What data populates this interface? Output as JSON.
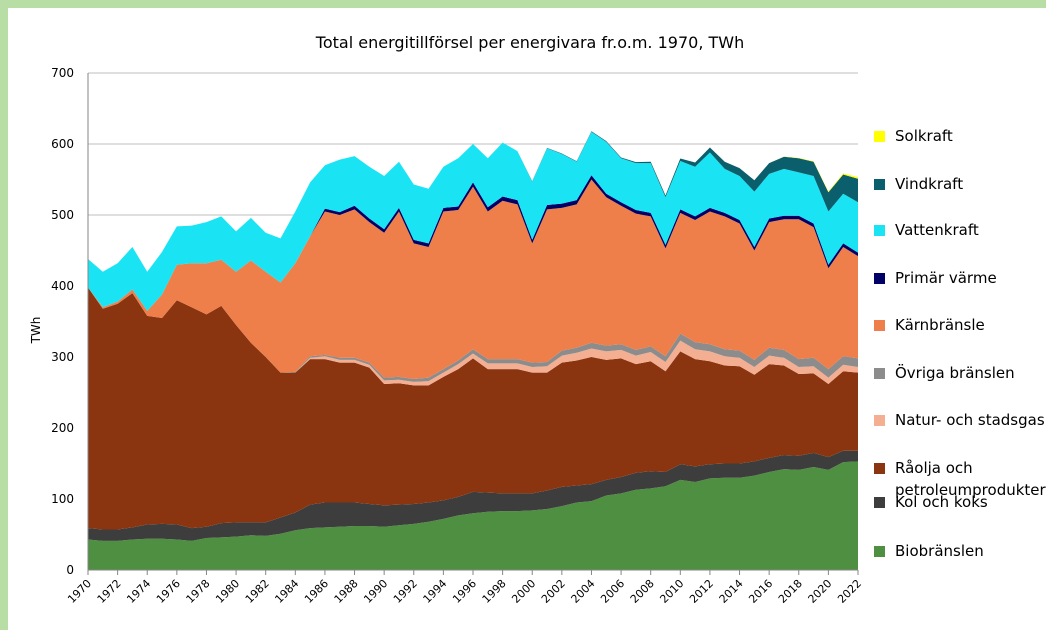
{
  "chart_data": {
    "type": "stacked_area",
    "title": "Total energitillförsel per energivara fr.o.m. 1970, TWh",
    "y_label": "TWh",
    "x": [
      1970,
      1971,
      1972,
      1973,
      1974,
      1975,
      1976,
      1977,
      1978,
      1979,
      1980,
      1981,
      1982,
      1983,
      1984,
      1985,
      1986,
      1987,
      1988,
      1989,
      1990,
      1991,
      1992,
      1993,
      1994,
      1995,
      1996,
      1997,
      1998,
      1999,
      2000,
      2001,
      2002,
      2003,
      2004,
      2005,
      2006,
      2007,
      2008,
      2009,
      2010,
      2011,
      2012,
      2013,
      2014,
      2015,
      2016,
      2017,
      2018,
      2019,
      2020,
      2021,
      2022
    ],
    "xlim": [
      1970,
      2022
    ],
    "xticks": [
      1970,
      1972,
      1974,
      1976,
      1978,
      1980,
      1982,
      1984,
      1986,
      1988,
      1990,
      1992,
      1994,
      1996,
      1998,
      2000,
      2002,
      2004,
      2006,
      2008,
      2010,
      2012,
      2014,
      2016,
      2018,
      2020,
      2022
    ],
    "ylim": [
      0,
      700
    ],
    "yticks": [
      0,
      100,
      200,
      300,
      400,
      500,
      600,
      700
    ],
    "grid": true,
    "legend": "right",
    "series": [
      {
        "name": "Biobränslen",
        "color": "#4f8f41",
        "values": [
          43,
          41,
          41,
          43,
          44,
          44,
          43,
          41,
          45,
          46,
          47,
          49,
          48,
          51,
          56,
          59,
          60,
          61,
          62,
          62,
          61,
          63,
          65,
          68,
          72,
          77,
          80,
          82,
          83,
          83,
          84,
          86,
          90,
          95,
          97,
          105,
          108,
          113,
          115,
          118,
          127,
          124,
          129,
          130,
          130,
          133,
          138,
          142,
          141,
          145,
          141,
          152,
          153
        ]
      },
      {
        "name": "Kol och koks",
        "color": "#3d3d3d",
        "values": [
          16,
          16,
          16,
          17,
          20,
          21,
          21,
          18,
          16,
          20,
          20,
          18,
          19,
          23,
          25,
          33,
          35,
          34,
          33,
          31,
          30,
          29,
          28,
          27,
          26,
          26,
          30,
          27,
          25,
          25,
          24,
          26,
          27,
          24,
          24,
          22,
          23,
          24,
          24,
          20,
          22,
          22,
          20,
          20,
          20,
          20,
          20,
          20,
          20,
          20,
          18,
          16,
          15
        ]
      },
      {
        "name": "Råolja och petroleumprodukter",
        "color": "#8b3510",
        "values": [
          339,
          311,
          318,
          330,
          294,
          290,
          316,
          311,
          299,
          306,
          278,
          253,
          233,
          204,
          197,
          205,
          202,
          197,
          197,
          192,
          171,
          171,
          167,
          165,
          174,
          180,
          188,
          174,
          175,
          175,
          170,
          166,
          175,
          176,
          179,
          169,
          167,
          153,
          155,
          142,
          159,
          151,
          145,
          138,
          137,
          122,
          132,
          126,
          115,
          112,
          103,
          112,
          110
        ]
      },
      {
        "name": "Natur- och stadsgas",
        "color": "#f4ae91",
        "values": [
          0,
          0,
          0,
          0,
          0,
          0,
          0,
          0,
          0,
          0,
          0,
          0,
          0,
          0,
          0,
          2,
          4,
          4,
          4,
          4,
          5,
          5,
          5,
          6,
          6,
          7,
          7,
          8,
          8,
          8,
          8,
          9,
          10,
          11,
          12,
          12,
          12,
          12,
          13,
          13,
          15,
          14,
          14,
          13,
          12,
          11,
          12,
          11,
          10,
          10,
          9,
          9,
          8
        ]
      },
      {
        "name": "Övriga bränslen",
        "color": "#8c8c8c",
        "values": [
          0,
          0,
          0,
          0,
          0,
          0,
          0,
          0,
          0,
          0,
          0,
          0,
          0,
          0,
          1,
          2,
          2,
          3,
          3,
          3,
          4,
          4,
          4,
          5,
          5,
          5,
          6,
          6,
          6,
          6,
          6,
          6,
          7,
          7,
          8,
          8,
          8,
          8,
          8,
          8,
          10,
          10,
          10,
          10,
          10,
          10,
          11,
          11,
          11,
          12,
          12,
          12,
          12
        ]
      },
      {
        "name": "Kärnbränsle",
        "color": "#ee7f4b",
        "values": [
          0,
          2,
          3,
          5,
          7,
          33,
          50,
          62,
          72,
          65,
          75,
          116,
          120,
          127,
          153,
          169,
          202,
          201,
          209,
          198,
          204,
          233,
          191,
          184,
          222,
          212,
          229,
          208,
          223,
          218,
          168,
          215,
          201,
          202,
          230,
          209,
          195,
          192,
          183,
          152,
          170,
          172,
          187,
          187,
          179,
          154,
          177,
          184,
          197,
          184,
          142,
          154,
          144
        ]
      },
      {
        "name": "Primär värme",
        "color": "#000066",
        "values": [
          0,
          0,
          0,
          0,
          0,
          0,
          0,
          0,
          0,
          0,
          0,
          0,
          0,
          0,
          0,
          0,
          4,
          4,
          5,
          5,
          5,
          5,
          5,
          5,
          5,
          5,
          6,
          6,
          6,
          6,
          5,
          6,
          6,
          6,
          6,
          5,
          5,
          5,
          5,
          5,
          5,
          5,
          5,
          5,
          5,
          5,
          5,
          5,
          5,
          5,
          5,
          5,
          5
        ]
      },
      {
        "name": "Vattenkraft",
        "color": "#1ae4f4",
        "values": [
          40,
          50,
          54,
          60,
          55,
          60,
          54,
          53,
          58,
          61,
          57,
          60,
          55,
          62,
          73,
          76,
          61,
          74,
          70,
          73,
          75,
          65,
          78,
          77,
          58,
          68,
          54,
          69,
          76,
          69,
          82,
          80,
          70,
          54,
          61,
          73,
          62,
          66,
          70,
          67,
          68,
          70,
          78,
          62,
          62,
          78,
          63,
          66,
          61,
          67,
          75,
          70,
          71
        ]
      },
      {
        "name": "Vindkraft",
        "color": "#0b5e6b",
        "values": [
          0,
          0,
          0,
          0,
          0,
          0,
          0,
          0,
          0,
          0,
          0,
          0,
          0,
          0,
          0,
          0,
          0,
          0,
          0,
          0,
          0,
          0,
          0,
          0,
          0,
          0,
          0,
          0,
          0,
          0,
          0.5,
          0.5,
          0.6,
          0.7,
          0.9,
          1,
          1,
          1.5,
          2,
          2.5,
          3.5,
          6,
          7,
          10,
          11,
          16,
          15,
          17,
          20,
          20,
          27,
          27,
          33
        ]
      },
      {
        "name": "Solkraft",
        "color": "#ffff00",
        "values": [
          0,
          0,
          0,
          0,
          0,
          0,
          0,
          0,
          0,
          0,
          0,
          0,
          0,
          0,
          0,
          0,
          0,
          0,
          0,
          0,
          0,
          0,
          0,
          0,
          0,
          0,
          0,
          0,
          0,
          0,
          0,
          0,
          0,
          0,
          0,
          0,
          0,
          0,
          0,
          0,
          0,
          0,
          0,
          0,
          0,
          0,
          0.1,
          0.2,
          0.4,
          0.7,
          1.1,
          1.6,
          2.4
        ]
      }
    ]
  }
}
